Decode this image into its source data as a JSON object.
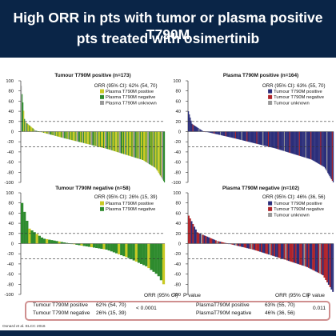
{
  "header": {
    "title_line1": "High ORR in pts with tumor or plasma positive T790M",
    "title_line2": "pts treated with osimertinib"
  },
  "colors": {
    "header_bg": "#0a2547",
    "tumour_positive": "#c9c924",
    "plasma_negative_or_tumour_negative": "#2e8b2e",
    "plasma_positive_or_tumour_positive_dark": "#2b2e7a",
    "negative_red": "#b0242a",
    "unknown": "#9a9a9a",
    "summary_border": "#cf8f8f"
  },
  "chart_data": [
    {
      "type": "bar",
      "title": "Tumour T790M positive (n=173)",
      "orr_text": "ORR (95% CI): 62% (54, 70)",
      "legend": [
        {
          "label": "Plasma T790M positive",
          "color": "#c9c924"
        },
        {
          "label": "Plasma T790M negative",
          "color": "#2e8b2e"
        },
        {
          "label": "Plasma T790M unknown",
          "color": "#9a9a9a"
        }
      ],
      "ylim": [
        -100,
        100
      ],
      "yticks": [
        100,
        80,
        60,
        40,
        20,
        0,
        -20,
        -40,
        -60,
        -80,
        -100
      ],
      "reference_lines": [
        20,
        -30
      ],
      "n": 173,
      "color_seq": [
        2,
        1,
        1,
        0,
        1,
        0,
        2,
        1,
        0,
        0,
        1,
        0,
        0,
        0,
        1,
        0,
        2
      ],
      "profile": [
        [
          0,
          90
        ],
        [
          0.025,
          20
        ],
        [
          0.1,
          2
        ],
        [
          0.3,
          -13
        ],
        [
          0.6,
          -34
        ],
        [
          0.85,
          -56
        ],
        [
          0.94,
          -72
        ],
        [
          1,
          -100
        ]
      ]
    },
    {
      "type": "bar",
      "title": "Plasma T790M positive (n=164)",
      "orr_text": "ORR (95% CI): 63% (55, 70)",
      "legend": [
        {
          "label": "Tumour T790M positive",
          "color": "#2b2e7a"
        },
        {
          "label": "Tumour T790M negative",
          "color": "#b0242a"
        },
        {
          "label": "Tumour unknown",
          "color": "#9a9a9a"
        }
      ],
      "ylim": [
        -100,
        100
      ],
      "yticks": [
        100,
        80,
        60,
        40,
        20,
        0,
        -20,
        -40,
        -60,
        -80,
        -100
      ],
      "reference_lines": [
        20,
        -30
      ],
      "n": 164,
      "color_seq": [
        0,
        0,
        0,
        0,
        0,
        1,
        0,
        0,
        0,
        0,
        0,
        0,
        2,
        0,
        0,
        0,
        0,
        0,
        1,
        0,
        0,
        0,
        0,
        0
      ],
      "profile": [
        [
          0,
          40
        ],
        [
          0.025,
          15
        ],
        [
          0.1,
          1
        ],
        [
          0.3,
          -12
        ],
        [
          0.6,
          -33
        ],
        [
          0.85,
          -55
        ],
        [
          0.94,
          -70
        ],
        [
          1,
          -100
        ]
      ]
    },
    {
      "type": "bar",
      "title": "Tumour T790M negative (n=58)",
      "orr_text": "ORR (95% CI): 26% (15, 39)",
      "legend": [
        {
          "label": "Plasma T790M positive",
          "color": "#c9c924"
        },
        {
          "label": "Plasma T790M negative",
          "color": "#2e8b2e"
        }
      ],
      "ylim": [
        -100,
        100
      ],
      "yticks": [
        100,
        80,
        60,
        40,
        20,
        0,
        -20,
        -40,
        -60,
        -80,
        -100
      ],
      "reference_lines": [
        20,
        -30
      ],
      "n": 58,
      "color_seq": [
        1,
        1,
        1,
        0,
        1,
        1,
        0,
        1,
        1,
        1,
        0,
        1,
        1,
        1,
        1,
        0,
        1,
        1
      ],
      "profile": [
        [
          0,
          80
        ],
        [
          0.05,
          30
        ],
        [
          0.15,
          10
        ],
        [
          0.4,
          -3
        ],
        [
          0.6,
          -12
        ],
        [
          0.75,
          -28
        ],
        [
          0.88,
          -45
        ],
        [
          0.96,
          -62
        ],
        [
          1,
          -80
        ]
      ]
    },
    {
      "type": "bar",
      "title": "Plasma T790M negative (n=102)",
      "orr_text": "ORR (95% CI): 46% (36, 56)",
      "legend": [
        {
          "label": "Tumour T790M positive",
          "color": "#2b2e7a"
        },
        {
          "label": "Tumour T790M negative",
          "color": "#b0242a"
        },
        {
          "label": "Tumour unknown",
          "color": "#9a9a9a"
        }
      ],
      "ylim": [
        -100,
        100
      ],
      "yticks": [
        100,
        80,
        60,
        40,
        20,
        0,
        -20,
        -40,
        -60,
        -80,
        -100
      ],
      "reference_lines": [
        20,
        -30
      ],
      "n": 102,
      "color_seq": [
        1,
        1,
        0,
        1,
        0,
        0,
        1,
        1,
        0,
        2,
        1,
        0,
        1,
        0,
        0,
        1,
        1,
        0,
        0,
        1,
        2,
        1,
        0,
        1
      ],
      "profile": [
        [
          0,
          55
        ],
        [
          0.06,
          22
        ],
        [
          0.2,
          5
        ],
        [
          0.45,
          -12
        ],
        [
          0.65,
          -30
        ],
        [
          0.82,
          -46
        ],
        [
          0.93,
          -62
        ],
        [
          1,
          -95
        ]
      ]
    }
  ],
  "summary": {
    "left_header": "ORR (95% CI)",
    "left_pvalue_header": "P value",
    "left_pvalue": "< 0.0001",
    "left_rows": [
      {
        "label": "Tumour T790M positive",
        "value": "62% (54, 70)"
      },
      {
        "label": "Tumour T790M negative",
        "value": "26% (15, 39)"
      }
    ],
    "right_header": "ORR (95% CI)",
    "right_pvalue_header": "P value",
    "right_pvalue": "0.011",
    "right_rows": [
      {
        "label": "PlasmaT790M positive",
        "value": "63% (55, 70)"
      },
      {
        "label": "PlasmaT790M negative",
        "value": "46% (36, 56)"
      }
    ]
  },
  "citation": "Oxnard et al. ELCC 2016"
}
